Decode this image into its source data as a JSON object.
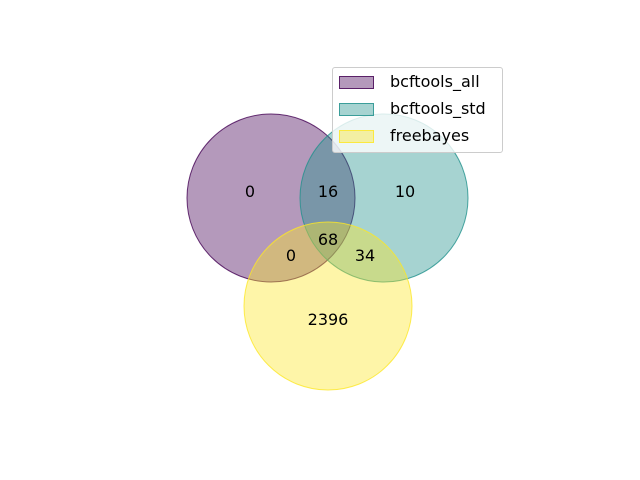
{
  "sets": [
    {
      "name": "bcftools_all",
      "fill": "#440154",
      "edge": "#440154",
      "fill_opacity": 0.4,
      "edge_opacity": 0.8
    },
    {
      "name": "bcftools_std",
      "fill": "#21918c",
      "edge": "#21918c",
      "fill_opacity": 0.4,
      "edge_opacity": 0.8
    },
    {
      "name": "freebayes",
      "fill": "#fde725",
      "edge": "#fde725",
      "fill_opacity": 0.4,
      "edge_opacity": 0.8
    }
  ],
  "regions": {
    "only_bcftools_all": "0",
    "bcftools_all_and_bcftools_std": "16",
    "only_bcftools_std": "10",
    "all_three": "68",
    "bcftools_all_and_freebayes": "0",
    "bcftools_std_and_freebayes": "34",
    "only_freebayes": "2396"
  },
  "legend": {
    "placement": "top-right",
    "items": [
      "bcftools_all",
      "bcftools_std",
      "freebayes"
    ]
  }
}
